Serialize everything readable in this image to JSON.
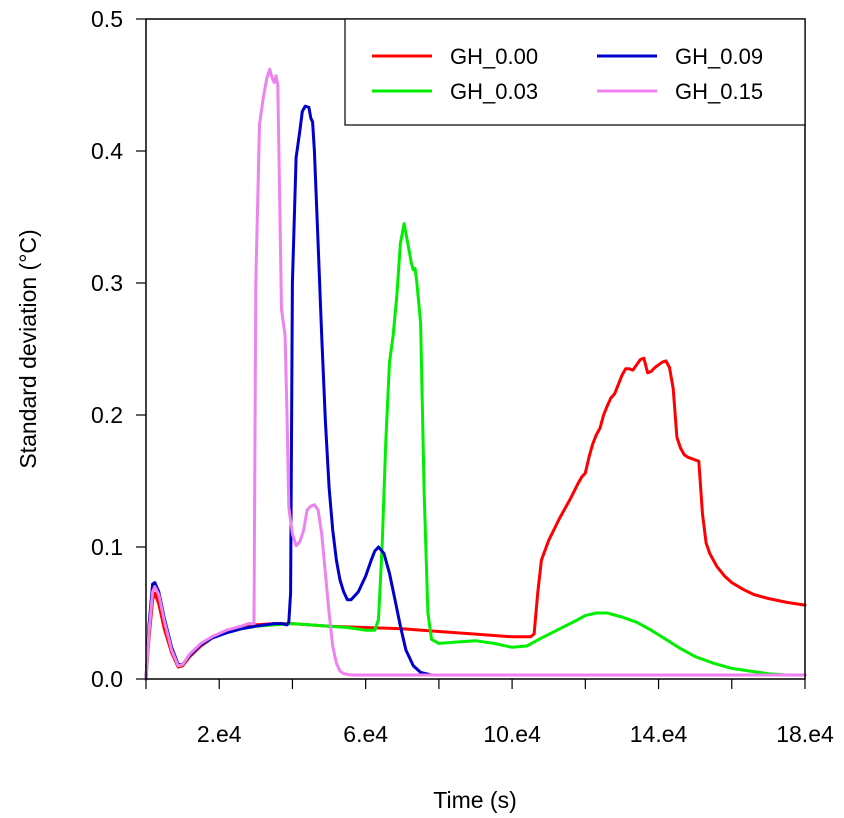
{
  "chart_data": {
    "type": "line",
    "title": "",
    "xlabel": "Time (s)",
    "ylabel": "Standard deviation (°C)",
    "xlim": [
      0,
      180000
    ],
    "ylim": [
      0,
      0.5
    ],
    "x_ticks": [
      {
        "value": 20000,
        "label": "2.e4"
      },
      {
        "value": 60000,
        "label": "6.e4"
      },
      {
        "value": 100000,
        "label": "10.e4"
      },
      {
        "value": 140000,
        "label": "14.e4"
      },
      {
        "value": 180000,
        "label": "18.e4"
      }
    ],
    "x_minor_ticks": [
      0,
      40000,
      80000,
      120000,
      160000
    ],
    "y_ticks": [
      {
        "value": 0.0,
        "label": "0.0"
      },
      {
        "value": 0.1,
        "label": "0.1"
      },
      {
        "value": 0.2,
        "label": "0.2"
      },
      {
        "value": 0.3,
        "label": "0.3"
      },
      {
        "value": 0.4,
        "label": "0.4"
      },
      {
        "value": 0.5,
        "label": "0.5"
      }
    ],
    "grid": false,
    "legend_position": "top-right",
    "series": [
      {
        "name": "GH_0.00",
        "color": "#ff0000",
        "x": [
          0,
          800,
          1800,
          2400,
          3500,
          5000,
          7000,
          8800,
          10000,
          12000,
          15000,
          18000,
          22000,
          26000,
          30000,
          35000,
          40000,
          50000,
          60000,
          70000,
          80000,
          90000,
          100000,
          105000,
          106000,
          107000,
          108000,
          110000,
          113000,
          116000,
          118000,
          119000,
          120000,
          121000,
          122000,
          123000,
          124000,
          125000,
          126000,
          127000,
          128000,
          129000,
          130000,
          131000,
          132000,
          133000,
          134000,
          135000,
          136000,
          137000,
          138000,
          139000,
          140000,
          141000,
          142000,
          143000,
          144000,
          145000,
          146000,
          147000,
          148000,
          149000,
          150000,
          151000,
          152000,
          153000,
          154000,
          156000,
          158000,
          160000,
          163000,
          166000,
          170000,
          175000,
          180000
        ],
        "y": [
          0,
          0.03,
          0.06,
          0.065,
          0.057,
          0.038,
          0.02,
          0.009,
          0.01,
          0.017,
          0.025,
          0.031,
          0.036,
          0.039,
          0.041,
          0.042,
          0.042,
          0.04,
          0.039,
          0.038,
          0.036,
          0.034,
          0.032,
          0.032,
          0.034,
          0.065,
          0.09,
          0.105,
          0.122,
          0.137,
          0.148,
          0.153,
          0.156,
          0.168,
          0.178,
          0.185,
          0.19,
          0.2,
          0.207,
          0.213,
          0.216,
          0.223,
          0.23,
          0.235,
          0.235,
          0.234,
          0.238,
          0.242,
          0.243,
          0.232,
          0.233,
          0.236,
          0.238,
          0.24,
          0.241,
          0.236,
          0.22,
          0.183,
          0.175,
          0.17,
          0.168,
          0.167,
          0.166,
          0.165,
          0.125,
          0.103,
          0.095,
          0.085,
          0.078,
          0.073,
          0.068,
          0.064,
          0.061,
          0.058,
          0.056
        ]
      },
      {
        "name": "GH_0.03",
        "color": "#00ee00",
        "x": [
          0,
          800,
          1800,
          2400,
          3500,
          5000,
          7000,
          8800,
          10000,
          12000,
          15000,
          18000,
          22000,
          26000,
          30000,
          35000,
          40000,
          45000,
          50000,
          55000,
          60000,
          62500,
          63500,
          64500,
          65500,
          66500,
          67500,
          68500,
          69500,
          70500,
          71500,
          72500,
          73000,
          73500,
          74000,
          75000,
          76000,
          77000,
          78000,
          80000,
          85000,
          90000,
          95000,
          100000,
          104000,
          108000,
          113000,
          118000,
          120000,
          123000,
          126000,
          130000,
          134000,
          138000,
          142000,
          146000,
          150000,
          155000,
          160000,
          165000,
          170000,
          175000,
          180000
        ],
        "y": [
          0,
          0.035,
          0.068,
          0.072,
          0.065,
          0.045,
          0.023,
          0.01,
          0.011,
          0.018,
          0.026,
          0.031,
          0.035,
          0.038,
          0.04,
          0.041,
          0.042,
          0.041,
          0.04,
          0.039,
          0.037,
          0.037,
          0.045,
          0.1,
          0.18,
          0.24,
          0.26,
          0.29,
          0.33,
          0.345,
          0.33,
          0.315,
          0.31,
          0.311,
          0.3,
          0.27,
          0.14,
          0.05,
          0.03,
          0.027,
          0.028,
          0.029,
          0.027,
          0.024,
          0.025,
          0.031,
          0.038,
          0.045,
          0.048,
          0.05,
          0.05,
          0.047,
          0.043,
          0.037,
          0.03,
          0.023,
          0.017,
          0.012,
          0.008,
          0.006,
          0.004,
          0.003,
          0.003
        ]
      },
      {
        "name": "GH_0.09",
        "color": "#0000cd",
        "x": [
          0,
          800,
          1800,
          2400,
          3500,
          5000,
          7000,
          8800,
          10000,
          12000,
          15000,
          18000,
          22000,
          26000,
          30000,
          35000,
          37000,
          38500,
          39000,
          39500,
          40000,
          41000,
          42000,
          42700,
          43500,
          44500,
          45000,
          45500,
          46000,
          47000,
          48000,
          49000,
          50000,
          51000,
          52000,
          53000,
          54000,
          55000,
          56000,
          58000,
          60000,
          61500,
          62500,
          63500,
          65000,
          66500,
          68000,
          69500,
          71000,
          73000,
          75000,
          78000,
          82000,
          90000,
          100000,
          120000,
          150000,
          180000
        ],
        "y": [
          0,
          0.04,
          0.072,
          0.073,
          0.066,
          0.046,
          0.024,
          0.011,
          0.011,
          0.018,
          0.026,
          0.031,
          0.035,
          0.038,
          0.04,
          0.042,
          0.042,
          0.041,
          0.043,
          0.065,
          0.3,
          0.395,
          0.415,
          0.43,
          0.434,
          0.433,
          0.425,
          0.422,
          0.4,
          0.33,
          0.26,
          0.195,
          0.145,
          0.113,
          0.09,
          0.075,
          0.066,
          0.06,
          0.06,
          0.066,
          0.078,
          0.09,
          0.097,
          0.1,
          0.095,
          0.08,
          0.06,
          0.04,
          0.022,
          0.01,
          0.005,
          0.003,
          0.003,
          0.003,
          0.003,
          0.003,
          0.003,
          0.003
        ]
      },
      {
        "name": "GH_0.15",
        "color": "#ee82ee",
        "x": [
          0,
          800,
          1800,
          2400,
          3500,
          5000,
          7000,
          8800,
          10000,
          12000,
          15000,
          18000,
          22000,
          26000,
          28000,
          29500,
          30000,
          31000,
          32000,
          33000,
          33800,
          34500,
          35000,
          35500,
          36000,
          37000,
          38000,
          38500,
          39000,
          40000,
          41000,
          42000,
          43000,
          44000,
          45000,
          46000,
          47000,
          48000,
          49000,
          50000,
          51000,
          52000,
          53000,
          54000,
          56000,
          60000,
          70000,
          100000,
          140000,
          180000
        ],
        "y": [
          0,
          0.035,
          0.066,
          0.07,
          0.064,
          0.044,
          0.022,
          0.01,
          0.011,
          0.019,
          0.027,
          0.032,
          0.037,
          0.04,
          0.042,
          0.042,
          0.3,
          0.42,
          0.44,
          0.455,
          0.462,
          0.455,
          0.452,
          0.457,
          0.45,
          0.28,
          0.26,
          0.2,
          0.13,
          0.11,
          0.101,
          0.104,
          0.112,
          0.128,
          0.131,
          0.132,
          0.128,
          0.11,
          0.08,
          0.05,
          0.025,
          0.012,
          0.006,
          0.004,
          0.003,
          0.003,
          0.003,
          0.003,
          0.003,
          0.003
        ]
      }
    ]
  }
}
